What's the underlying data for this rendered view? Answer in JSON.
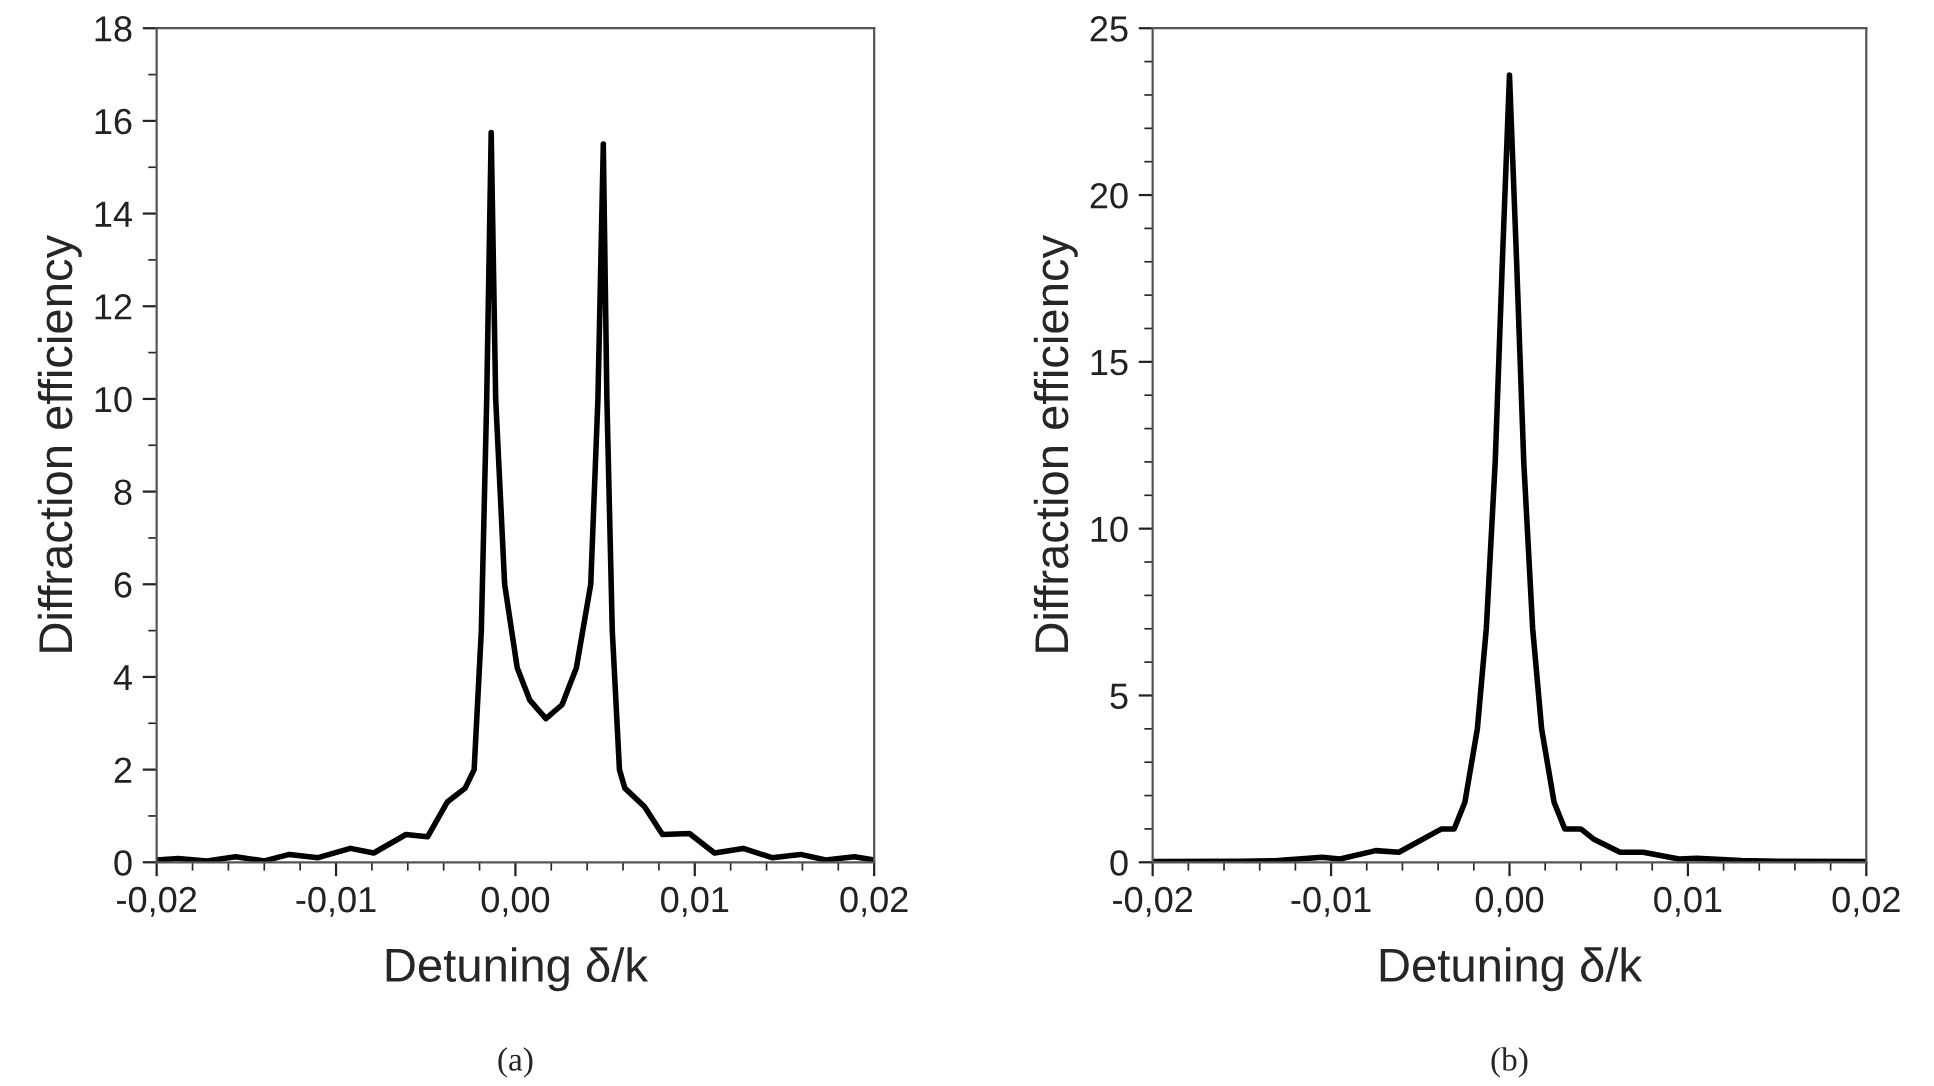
{
  "chart_data": [
    {
      "type": "line",
      "xlabel": "Detuning δ/k",
      "ylabel": "Diffraction efficiency",
      "annotations": [
        "(a)"
      ],
      "xlim": [
        -0.02,
        0.02
      ],
      "ylim": [
        0,
        18
      ],
      "xticks": [
        {
          "value": -0.02,
          "label": "-0,02"
        },
        {
          "value": -0.018,
          "label": null
        },
        {
          "value": -0.016,
          "label": null
        },
        {
          "value": -0.014,
          "label": null
        },
        {
          "value": -0.012,
          "label": null
        },
        {
          "value": -0.01,
          "label": "-0,01"
        },
        {
          "value": -0.008,
          "label": null
        },
        {
          "value": -0.006,
          "label": null
        },
        {
          "value": -0.004,
          "label": null
        },
        {
          "value": -0.002,
          "label": null
        },
        {
          "value": 0,
          "label": "0,00"
        },
        {
          "value": 0.002,
          "label": null
        },
        {
          "value": 0.004,
          "label": null
        },
        {
          "value": 0.006,
          "label": null
        },
        {
          "value": 0.008,
          "label": null
        },
        {
          "value": 0.01,
          "label": "0,01"
        },
        {
          "value": 0.012,
          "label": null
        },
        {
          "value": 0.014,
          "label": null
        },
        {
          "value": 0.016,
          "label": null
        },
        {
          "value": 0.018,
          "label": null
        },
        {
          "value": 0.02,
          "label": "0,02"
        }
      ],
      "yticks": [
        0,
        {
          "value": 1,
          "label": null
        },
        2,
        {
          "value": 3,
          "label": null
        },
        4,
        {
          "value": 5,
          "label": null
        },
        6,
        {
          "value": 7,
          "label": null
        },
        8,
        {
          "value": 9,
          "label": null
        },
        10,
        {
          "value": 11,
          "label": null
        },
        12,
        {
          "value": 13,
          "label": null
        },
        14,
        {
          "value": 15,
          "label": null
        },
        16,
        {
          "value": 17,
          "label": null
        },
        18
      ],
      "grid": false,
      "legend": false,
      "marker": "none",
      "line_style": "solid",
      "series": [
        {
          "color": "#000000",
          "x": [
            -0.02,
            -0.0188,
            -0.0172,
            -0.0156,
            -0.014,
            -0.0126,
            -0.011,
            -0.0092,
            -0.0079,
            -0.0061,
            -0.0049,
            -0.0038,
            -0.0028,
            -0.0023,
            -0.0019,
            -0.0016,
            -0.00135,
            -0.0011,
            -0.0006,
            0.0001,
            0.0008,
            0.0017,
            0.0026,
            0.0034,
            0.0042,
            0.0046,
            0.0049,
            0.0051,
            0.0054,
            0.0058,
            0.0061,
            0.0072,
            0.0082,
            0.0097,
            0.0111,
            0.0127,
            0.0143,
            0.0159,
            0.0173,
            0.0189,
            0.02
          ],
          "values": [
            0.05,
            0.08,
            0.03,
            0.12,
            0.03,
            0.17,
            0.1,
            0.3,
            0.2,
            0.6,
            0.55,
            1.3,
            1.6,
            2.0,
            5,
            10,
            15.75,
            10,
            6,
            4.2,
            3.5,
            3.1,
            3.4,
            4.2,
            6,
            10,
            15.5,
            10,
            5,
            2.0,
            1.6,
            1.2,
            0.6,
            0.62,
            0.2,
            0.3,
            0.1,
            0.17,
            0.05,
            0.12,
            0.05
          ]
        }
      ]
    },
    {
      "type": "line",
      "xlabel": "Detuning δ/k",
      "ylabel": "Diffraction efficiency",
      "annotations": [
        "(b)"
      ],
      "xlim": [
        -0.02,
        0.02
      ],
      "ylim": [
        0,
        25
      ],
      "xticks": [
        {
          "value": -0.02,
          "label": "-0,02"
        },
        {
          "value": -0.018,
          "label": null
        },
        {
          "value": -0.016,
          "label": null
        },
        {
          "value": -0.014,
          "label": null
        },
        {
          "value": -0.012,
          "label": null
        },
        {
          "value": -0.01,
          "label": "-0,01"
        },
        {
          "value": -0.008,
          "label": null
        },
        {
          "value": -0.006,
          "label": null
        },
        {
          "value": -0.004,
          "label": null
        },
        {
          "value": -0.002,
          "label": null
        },
        {
          "value": 0,
          "label": "0,00"
        },
        {
          "value": 0.002,
          "label": null
        },
        {
          "value": 0.004,
          "label": null
        },
        {
          "value": 0.006,
          "label": null
        },
        {
          "value": 0.008,
          "label": null
        },
        {
          "value": 0.01,
          "label": "0,01"
        },
        {
          "value": 0.012,
          "label": null
        },
        {
          "value": 0.014,
          "label": null
        },
        {
          "value": 0.016,
          "label": null
        },
        {
          "value": 0.018,
          "label": null
        },
        {
          "value": 0.02,
          "label": "0,02"
        }
      ],
      "yticks": [
        0,
        {
          "value": 1,
          "label": null
        },
        {
          "value": 2,
          "label": null
        },
        {
          "value": 3,
          "label": null
        },
        {
          "value": 4,
          "label": null
        },
        5,
        {
          "value": 6,
          "label": null
        },
        {
          "value": 7,
          "label": null
        },
        {
          "value": 8,
          "label": null
        },
        {
          "value": 9,
          "label": null
        },
        10,
        {
          "value": 11,
          "label": null
        },
        {
          "value": 12,
          "label": null
        },
        {
          "value": 13,
          "label": null
        },
        {
          "value": 14,
          "label": null
        },
        15,
        {
          "value": 16,
          "label": null
        },
        {
          "value": 17,
          "label": null
        },
        {
          "value": 18,
          "label": null
        },
        {
          "value": 19,
          "label": null
        },
        20,
        {
          "value": 21,
          "label": null
        },
        {
          "value": 22,
          "label": null
        },
        {
          "value": 23,
          "label": null
        },
        {
          "value": 24,
          "label": null
        },
        25
      ],
      "grid": false,
      "legend": false,
      "marker": "none",
      "line_style": "solid",
      "series": [
        {
          "color": "#000000",
          "x": [
            -0.02,
            -0.015,
            -0.013,
            -0.0105,
            -0.0095,
            -0.0075,
            -0.0062,
            -0.0045,
            -0.0038,
            -0.0031,
            -0.0025,
            -0.0018,
            -0.0013,
            -0.0008,
            -0.0004,
            0,
            0.0004,
            0.0008,
            0.0013,
            0.0018,
            0.0025,
            0.0031,
            0.004,
            0.0047,
            0.0062,
            0.0075,
            0.0095,
            0.0105,
            0.013,
            0.015,
            0.02
          ],
          "values": [
            0.02,
            0.03,
            0.05,
            0.15,
            0.1,
            0.35,
            0.3,
            0.8,
            1.0,
            1.0,
            1.8,
            4,
            7,
            12,
            18,
            23.6,
            18,
            12,
            7,
            4,
            1.8,
            1.0,
            1.0,
            0.7,
            0.3,
            0.3,
            0.1,
            0.12,
            0.05,
            0.03,
            0.02
          ]
        }
      ]
    }
  ]
}
